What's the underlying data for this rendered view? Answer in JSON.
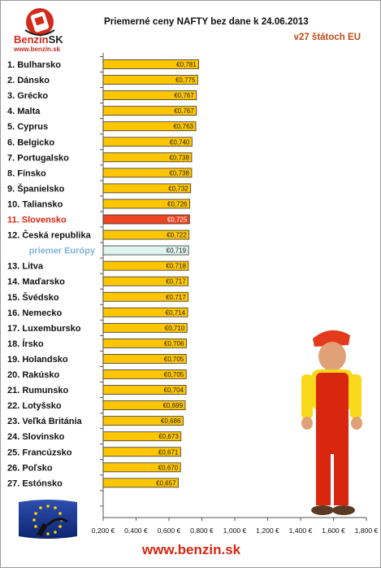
{
  "logo": {
    "brand_prefix": "Benzin",
    "brand_suffix": "SK",
    "url": "www.benzin.sk"
  },
  "title": "Priemerné ceny NAFTY bez dane k 24.06.2013",
  "subtitle": "v27 štátoch EU",
  "footer": {
    "url": "www.benzin.sk"
  },
  "colors": {
    "bar": "#ffc600",
    "highlight": "#ee4422",
    "average": "#dff4ee",
    "highlight_text": "#d8260f",
    "average_text": "#7fb3d8"
  },
  "chart_data": {
    "type": "bar",
    "orientation": "horizontal",
    "title": "Priemerné ceny NAFTY bez dane k 24.06.2013",
    "subtitle": "v27 štátoch EU",
    "xlim": [
      0.2,
      1.8
    ],
    "x_ticks": [
      "0,200 €",
      "0,400 €",
      "0,600 €",
      "0,800 €",
      "1,000 €",
      "1,200 €",
      "1,400 €",
      "1,600 €",
      "1,800 €"
    ],
    "grid": false,
    "categories": [
      "1. Bulharsko",
      "2. Dánsko",
      "3. Grécko",
      "4. Malta",
      "5. Cyprus",
      "6. Belgicko",
      "7. Portugalsko",
      "8. Fínsko",
      "9. Španielsko",
      "10. Taliansko",
      "11. Slovensko",
      "12. Česká republika",
      "priemer Európy",
      "13. Litva",
      "14. Maďarsko",
      "15. Švédsko",
      "16. Nemecko",
      "17. Luxembursko",
      "18. Írsko",
      "19. Holandsko",
      "20. Rakúsko",
      "21. Rumunsko",
      "22. Lotyšsko",
      "23. Veľká Británia",
      "24. Slovinsko",
      "25. Francúzsko",
      "26. Poľsko",
      "27. Estónsko"
    ],
    "values": [
      0.781,
      0.775,
      0.767,
      0.767,
      0.763,
      0.74,
      0.738,
      0.738,
      0.732,
      0.726,
      0.725,
      0.722,
      0.719,
      0.718,
      0.717,
      0.717,
      0.714,
      0.71,
      0.706,
      0.705,
      0.705,
      0.704,
      0.699,
      0.686,
      0.673,
      0.671,
      0.67,
      0.657
    ],
    "value_labels": [
      "€0,781",
      "€0,775",
      "€0,767",
      "€0,767",
      "€0,763",
      "€0,740",
      "€0,738",
      "€0,738",
      "€0,732",
      "€0,726",
      "€0,725",
      "€0,722",
      "€0,719",
      "€0,718",
      "€0,717",
      "€0,717",
      "€0,714",
      "€0,710",
      "€0,706",
      "€0,705",
      "€0,705",
      "€0,704",
      "€0,699",
      "€0,686",
      "€0,673",
      "€0,671",
      "€0,670",
      "€0,657"
    ],
    "highlight_index": 10,
    "average_index": 12
  }
}
